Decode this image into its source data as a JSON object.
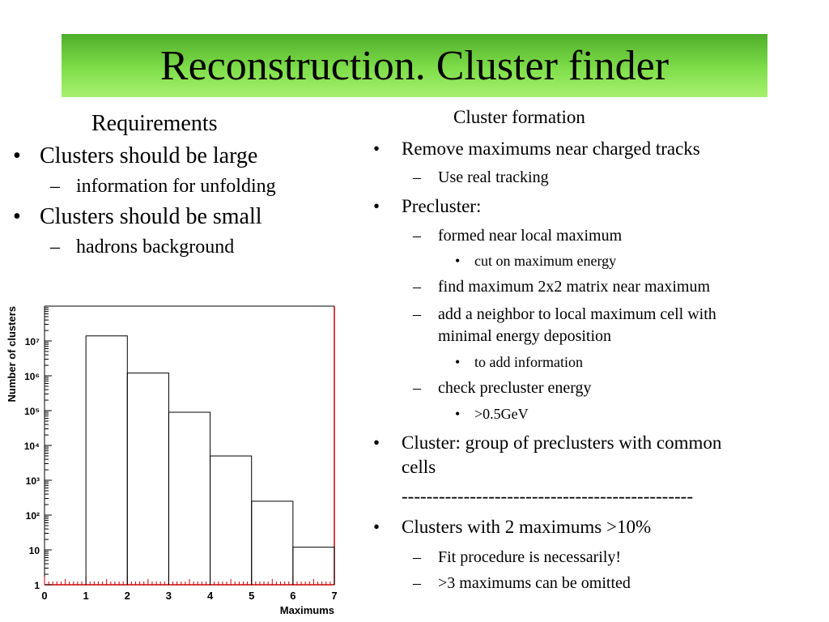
{
  "slide": {
    "title": "Reconstruction. Cluster finder"
  },
  "left": {
    "heading": "Requirements",
    "items": [
      {
        "text": "Clusters should be large",
        "sub": "information for unfolding"
      },
      {
        "text": "Clusters should be small",
        "sub": "hadrons background"
      }
    ]
  },
  "right": {
    "heading": "Cluster formation",
    "bullet_symbol": "•",
    "dash_symbol": "–",
    "remove": "Remove maximums near charged tracks",
    "remove_sub": "Use real tracking",
    "precluster": "Precluster:",
    "pc_formed": "formed near local maximum",
    "pc_formed_sub": "cut on maximum energy",
    "pc_find": "find maximum 2x2 matrix near maximum",
    "pc_add_line1": "add a neighbor to local maximum cell with",
    "pc_add_line2": "minimal energy deposition",
    "pc_add_sub": "to add information",
    "pc_check": "check precluster energy",
    "pc_check_sub": ">0.5GeV",
    "cluster_line1": "Cluster: group of preclusters with common",
    "cluster_line2": "cells",
    "separator": "-----------------------------------------------",
    "two_max": "Clusters with 2 maximums >10%",
    "fit": "Fit procedure is necessarily!",
    "omit": ">3 maximums can be omitted"
  },
  "chart_data": {
    "type": "histogram",
    "xlabel": "Maximums",
    "ylabel": "Number of clusters",
    "x_ticks": [
      "0",
      "1",
      "2",
      "3",
      "4",
      "5",
      "6",
      "7"
    ],
    "y_ticks": [
      "1",
      "10",
      "10²",
      "10³",
      "10⁴",
      "10⁵",
      "10⁶",
      "10⁷"
    ],
    "xlim": [
      0,
      7
    ],
    "ylim": [
      1,
      100000000
    ],
    "y_scale": "log",
    "bins": [
      {
        "x0": 1,
        "x1": 2,
        "value": 14000000
      },
      {
        "x0": 2,
        "x1": 3,
        "value": 1200000
      },
      {
        "x0": 3,
        "x1": 4,
        "value": 90000
      },
      {
        "x0": 4,
        "x1": 5,
        "value": 5000
      },
      {
        "x0": 5,
        "x1": 6,
        "value": 250
      },
      {
        "x0": 6,
        "x1": 7,
        "value": 12
      }
    ],
    "frame_color": "#cc0000",
    "line_color": "#000000"
  }
}
